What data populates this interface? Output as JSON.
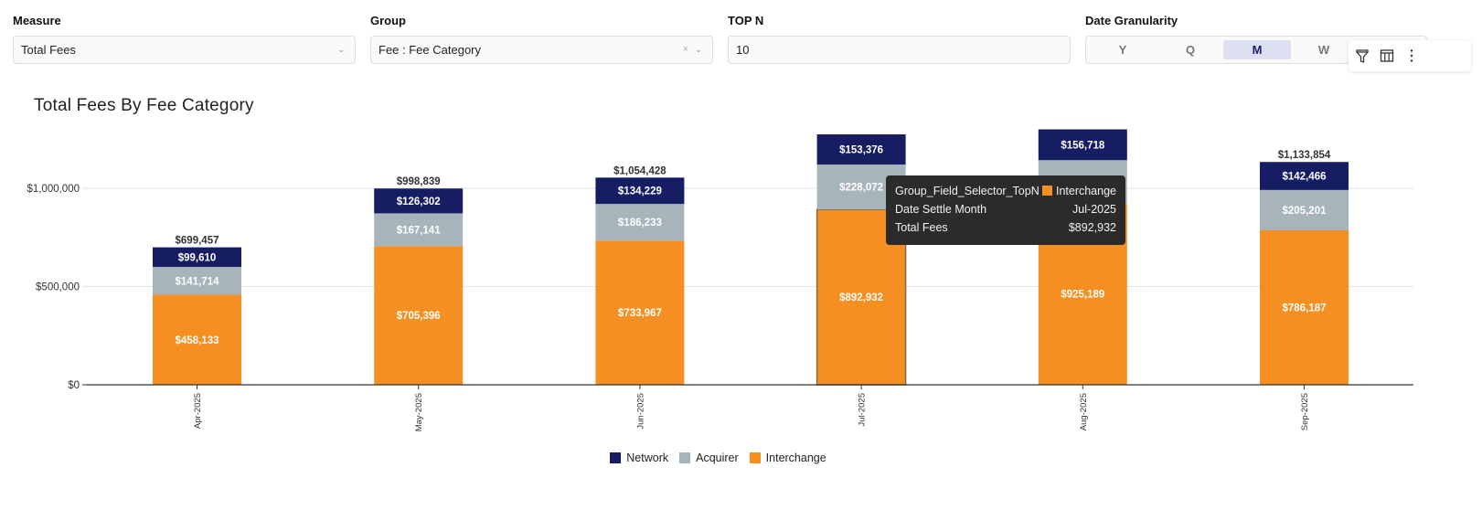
{
  "controls": {
    "measure": {
      "label": "Measure",
      "value": "Total Fees"
    },
    "group": {
      "label": "Group",
      "value": "Fee : Fee Category"
    },
    "topn": {
      "label": "TOP N",
      "value": "10"
    },
    "granularity": {
      "label": "Date Granularity",
      "options": [
        "Y",
        "Q",
        "M",
        "W"
      ],
      "selected": "M"
    }
  },
  "toolbar": {
    "icons": [
      "filter-icon",
      "table-icon",
      "more-vertical-icon"
    ]
  },
  "colors": {
    "Network": "#161d63",
    "Acquirer": "#a7b4bb",
    "Interchange": "#f68f21",
    "axis": "#333333",
    "grid": "#e2e2e2"
  },
  "tooltip": {
    "rows": [
      {
        "key": "Group_Field_Selector_TopN",
        "value": "Interchange",
        "swatch": "#f68f21"
      },
      {
        "key": "Date Settle Month",
        "value": "Jul-2025"
      },
      {
        "key": "Total Fees",
        "value": "$892,932"
      }
    ]
  },
  "chart_data": {
    "type": "bar",
    "stacked": true,
    "title": "Total Fees By Fee Category",
    "xlabel": "",
    "ylabel": "",
    "ylim": [
      0,
      1300000
    ],
    "yticks": [
      0,
      500000,
      1000000
    ],
    "ytick_labels": [
      "$0",
      "$500,000",
      "$1,000,000"
    ],
    "grid": true,
    "legend_position": "bottom-center",
    "categories": [
      "Apr-2025",
      "May-2025",
      "Jun-2025",
      "Jul-2025",
      "Aug-2025",
      "Sep-2025"
    ],
    "series": [
      {
        "name": "Interchange",
        "values": [
          458133,
          705396,
          733967,
          892932,
          925189,
          786187
        ],
        "labels": [
          "$458,133",
          "$705,396",
          "$733,967",
          "$892,932",
          "$925,189",
          "$786,187"
        ]
      },
      {
        "name": "Acquirer",
        "values": [
          141714,
          167141,
          186233,
          228072,
          218000,
          205201
        ],
        "labels": [
          "$141,714",
          "$167,141",
          "$186,233",
          "$228,072",
          "",
          "$205,201"
        ]
      },
      {
        "name": "Network",
        "values": [
          99610,
          126302,
          134229,
          153376,
          156718,
          142466
        ],
        "labels": [
          "$99,610",
          "$126,302",
          "$134,229",
          "$153,376",
          "$156,718",
          "$142,466"
        ]
      }
    ],
    "totals": [
      "$699,457",
      "$998,839",
      "$1,054,428",
      "",
      "",
      "$1,133,854"
    ],
    "legend": [
      "Network",
      "Acquirer",
      "Interchange"
    ],
    "highlighted": {
      "category": "Jul-2025",
      "series": "Interchange"
    }
  }
}
